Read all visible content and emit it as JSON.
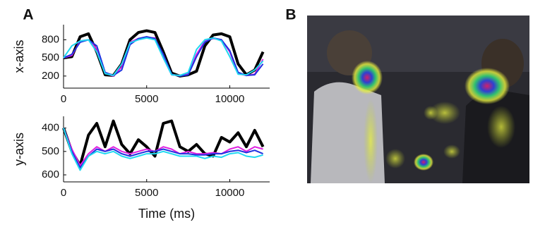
{
  "panel_labels": [
    "A",
    "B"
  ],
  "chart_data": [
    {
      "type": "line",
      "y_label": "x-axis",
      "x": [
        0,
        500,
        1000,
        1500,
        2000,
        2500,
        3000,
        3500,
        4000,
        4500,
        5000,
        5500,
        6000,
        6500,
        7000,
        7500,
        8000,
        8500,
        9000,
        9500,
        10000,
        10500,
        11000,
        11500,
        12000
      ],
      "xlim": [
        0,
        12400
      ],
      "xticks": [
        0,
        5000,
        10000
      ],
      "ylim": [
        0,
        1050
      ],
      "yticks": [
        200,
        500,
        800
      ],
      "series": [
        {
          "color": "#000000",
          "values": [
            500,
            520,
            850,
            900,
            600,
            220,
            210,
            400,
            800,
            920,
            950,
            920,
            600,
            250,
            200,
            220,
            280,
            700,
            880,
            900,
            850,
            400,
            220,
            300,
            600
          ]
        },
        {
          "color": "#e020e0",
          "values": [
            500,
            540,
            780,
            800,
            650,
            250,
            200,
            350,
            760,
            820,
            840,
            830,
            500,
            220,
            210,
            230,
            560,
            780,
            820,
            800,
            600,
            240,
            210,
            230,
            480
          ]
        },
        {
          "color": "#2030e0",
          "values": [
            500,
            560,
            760,
            800,
            700,
            260,
            210,
            300,
            720,
            820,
            850,
            820,
            560,
            230,
            200,
            220,
            520,
            760,
            830,
            800,
            620,
            260,
            210,
            220,
            400
          ]
        },
        {
          "color": "#20d8f0",
          "values": [
            500,
            700,
            780,
            800,
            600,
            240,
            210,
            400,
            750,
            800,
            830,
            800,
            500,
            220,
            210,
            260,
            640,
            800,
            830,
            780,
            520,
            230,
            220,
            300,
            450
          ]
        }
      ]
    },
    {
      "type": "line",
      "y_label": "y-axis",
      "x_label": "Time (ms)",
      "x": [
        0,
        500,
        1000,
        1500,
        2000,
        2500,
        3000,
        3500,
        4000,
        4500,
        5000,
        5500,
        6000,
        6500,
        7000,
        7500,
        8000,
        8500,
        9000,
        9500,
        10000,
        10500,
        11000,
        11500,
        12000
      ],
      "xlim": [
        0,
        12400
      ],
      "xticks": [
        0,
        5000,
        10000
      ],
      "ylim": [
        630,
        350
      ],
      "yticks": [
        400,
        500,
        600
      ],
      "series": [
        {
          "color": "#000000",
          "values": [
            400,
            500,
            560,
            430,
            380,
            480,
            370,
            470,
            510,
            450,
            480,
            520,
            380,
            370,
            480,
            500,
            470,
            510,
            520,
            440,
            460,
            420,
            480,
            410,
            480
          ]
        },
        {
          "color": "#e020e0",
          "values": [
            400,
            490,
            560,
            510,
            480,
            500,
            480,
            500,
            510,
            500,
            490,
            500,
            480,
            490,
            510,
            500,
            510,
            510,
            505,
            510,
            490,
            480,
            500,
            480,
            490
          ]
        },
        {
          "color": "#2030e0",
          "values": [
            400,
            500,
            570,
            520,
            490,
            500,
            490,
            510,
            520,
            510,
            500,
            500,
            490,
            500,
            510,
            510,
            515,
            515,
            510,
            510,
            500,
            495,
            505,
            495,
            510
          ]
        },
        {
          "color": "#20d8f0",
          "values": [
            400,
            510,
            580,
            520,
            500,
            510,
            500,
            520,
            530,
            520,
            510,
            510,
            500,
            510,
            520,
            520,
            520,
            530,
            520,
            525,
            510,
            505,
            520,
            525,
            515
          ]
        }
      ]
    }
  ]
}
